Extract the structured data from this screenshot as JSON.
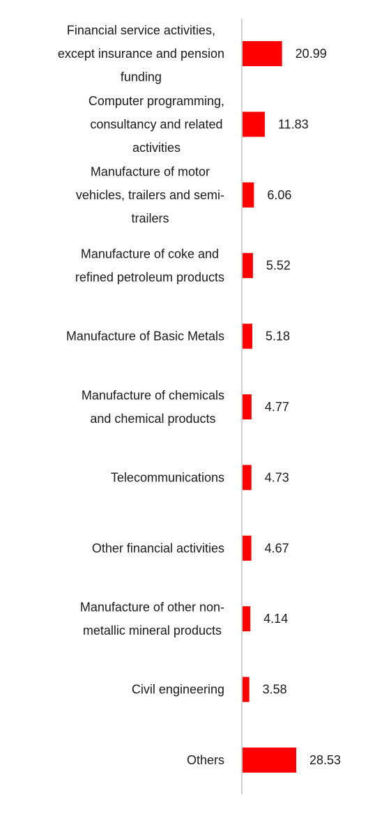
{
  "chart_data": {
    "type": "bar",
    "orientation": "horizontal",
    "title": "",
    "xlabel": "",
    "ylabel": "",
    "grid": false,
    "legend": "none",
    "colors": {
      "bar": "#ff0000",
      "axis": "#d0d0d0",
      "text": "#1a1a1a"
    },
    "categories": [
      [
        "Financial service activities,",
        "except insurance and pension",
        "funding"
      ],
      [
        "Computer programming,",
        "consultancy and related",
        "activities"
      ],
      [
        "Manufacture of motor",
        "vehicles, trailers and semi-",
        "trailers"
      ],
      [
        "Manufacture of coke and",
        "refined petroleum products"
      ],
      [
        "Manufacture of Basic Metals"
      ],
      [
        "Manufacture of chemicals",
        "and chemical products"
      ],
      [
        "Telecommunications"
      ],
      [
        "Other financial activities"
      ],
      [
        "Manufacture of other non-",
        "metallic mineral products"
      ],
      [
        "Civil engineering"
      ],
      [
        "Others"
      ]
    ],
    "values": [
      20.99,
      11.83,
      6.06,
      5.52,
      5.18,
      4.77,
      4.73,
      4.67,
      4.14,
      3.58,
      28.53
    ],
    "value_labels": [
      "20.99",
      "11.83",
      "6.06",
      "5.52",
      "5.18",
      "4.77",
      "4.73",
      "4.67",
      "4.14",
      "3.58",
      "28.53"
    ]
  }
}
